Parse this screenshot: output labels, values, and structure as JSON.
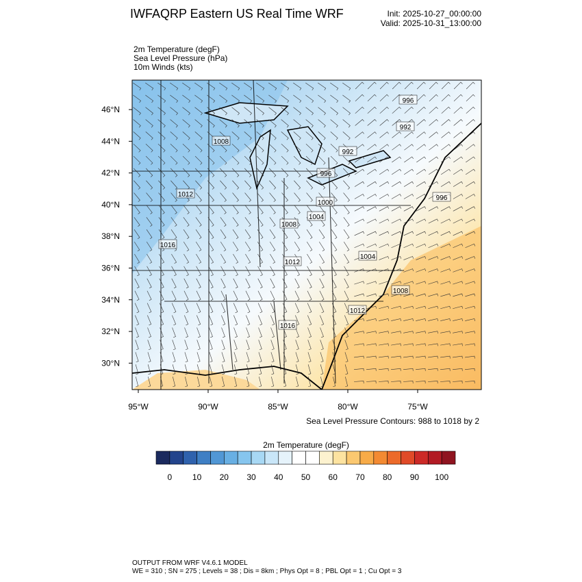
{
  "header": {
    "title": "IWFAQRP Eastern US Real Time WRF",
    "init": "Init: 2025-10-27_00:00:00",
    "valid": "Valid: 2025-10-31_13:00:00"
  },
  "fields": [
    "2m Temperature   (degF)",
    "Sea Level Pressure   (hPa)",
    "10m Winds   (kts)"
  ],
  "map": {
    "lonlim": [
      -95.44,
      -70.44
    ],
    "latlim": [
      28.33,
      47.86
    ],
    "lon_ticks": [
      {
        "value": -95,
        "label": "95°W"
      },
      {
        "value": -90,
        "label": "90°W"
      },
      {
        "value": -85,
        "label": "85°W"
      },
      {
        "value": -80,
        "label": "80°W"
      },
      {
        "value": -75,
        "label": "75°W"
      }
    ],
    "lat_ticks": [
      {
        "value": 46,
        "label": "46°N"
      },
      {
        "value": 44,
        "label": "44°N"
      },
      {
        "value": 42,
        "label": "42°N"
      },
      {
        "value": 40,
        "label": "40°N"
      },
      {
        "value": 38,
        "label": "38°N"
      },
      {
        "value": 36,
        "label": "36°N"
      },
      {
        "value": 34,
        "label": "34°N"
      },
      {
        "value": 32,
        "label": "32°N"
      },
      {
        "value": 30,
        "label": "30°N"
      }
    ],
    "contour_labels": [
      996,
      992,
      1008,
      992,
      996,
      1012,
      996,
      1000,
      1004,
      1008,
      1016,
      1012,
      1004,
      1008,
      1012,
      1016
    ],
    "contour_note": "Sea Level Pressure Contours: 988 to 1018 by 2"
  },
  "colorbar": {
    "title": "2m Temperature  (degF)",
    "colors": [
      "#1b2a5e",
      "#23448c",
      "#2f62ad",
      "#3f7fc4",
      "#5197d5",
      "#68afe3",
      "#86c5ee",
      "#a8d8f4",
      "#c9e6f8",
      "#e6f3fb",
      "#ffffff",
      "#ffffff",
      "#fdf2cf",
      "#fde3a0",
      "#fbc870",
      "#f7ab48",
      "#f38a32",
      "#ec6a2a",
      "#e04a28",
      "#cc2a27",
      "#b21b24",
      "#8f1420"
    ],
    "ticks": [
      0,
      10,
      20,
      30,
      40,
      50,
      60,
      70,
      80,
      90,
      100
    ]
  },
  "footer": [
    "OUTPUT FROM WRF V4.6.1 MODEL",
    "WE = 310 ; SN = 275 ; Levels = 38 ; Dis = 8km ; Phys Opt = 8 ; PBL Opt = 1 ; Cu Opt = 3"
  ]
}
